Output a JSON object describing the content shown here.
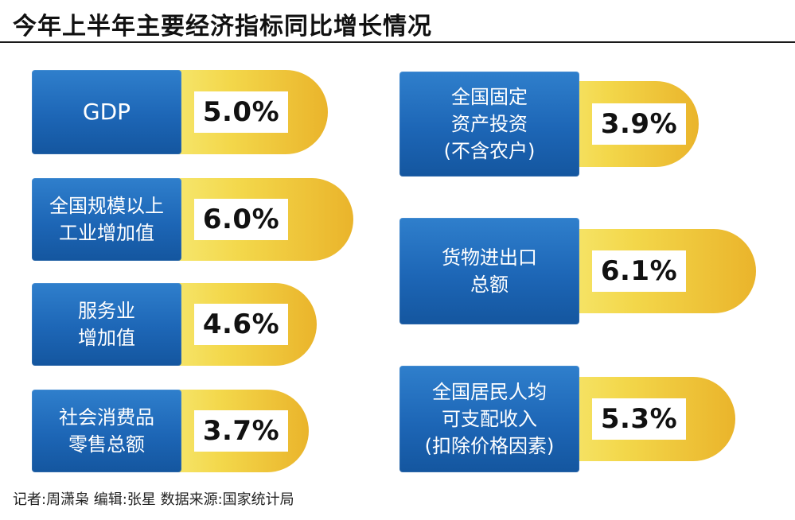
{
  "title": "今年上半年主要经济指标同比增长情况",
  "footer": "记者:周潇枭   编辑:张星   数据来源:国家统计局",
  "colors": {
    "box": "#1d66b6",
    "pill_light": "#f7ec7a",
    "pill_dark": "#eab42b",
    "rule": "#1a1a1a"
  },
  "chart_data": {
    "type": "table",
    "categories": [
      "GDP",
      "全国规模以上工业增加值",
      "服务业增加值",
      "社会消费品零售总额",
      "全国固定资产投资(不含农户)",
      "货物进出口总额",
      "全国居民人均可支配收入(扣除价格因素)"
    ],
    "values": [
      5.0,
      6.0,
      4.6,
      3.7,
      3.9,
      6.1,
      5.3
    ],
    "unit": "%",
    "title": "今年上半年主要经济指标同比增长情况"
  },
  "items": [
    {
      "label": "GDP",
      "value": "5.0%"
    },
    {
      "label": "全国规模以上\n工业增加值",
      "value": "6.0%"
    },
    {
      "label": "服务业\n增加值",
      "value": "4.6%"
    },
    {
      "label": "社会消费品\n零售总额",
      "value": "3.7%"
    },
    {
      "label": "全国固定\n资产投资\n(不含农户)",
      "value": "3.9%"
    },
    {
      "label": "货物进出口\n总额",
      "value": "6.1%"
    },
    {
      "label": "全国居民人均\n可支配收入\n(扣除价格因素)",
      "value": "5.3%"
    }
  ]
}
